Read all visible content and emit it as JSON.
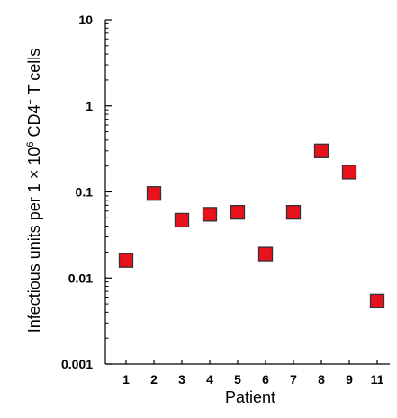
{
  "chart_data": {
    "type": "scatter",
    "title": "",
    "xlabel": "Patient",
    "ylabel": {
      "prefix": "Infectious units per 1 × 10",
      "exp": "6",
      "middle": " CD4",
      "sup": "+",
      "suffix": " T cells"
    },
    "y_scale": "log",
    "ylim": [
      0.001,
      10
    ],
    "y_ticks": [
      0.001,
      0.01,
      0.1,
      1,
      10
    ],
    "y_tick_labels": [
      "0.001",
      "0.01",
      "0.1",
      "1",
      "10"
    ],
    "categories": [
      "1",
      "2",
      "3",
      "4",
      "5",
      "6",
      "7",
      "8",
      "9",
      "11"
    ],
    "values": [
      0.016,
      0.096,
      0.047,
      0.055,
      0.058,
      0.019,
      0.058,
      0.3,
      0.17,
      0.0054
    ],
    "grid": false,
    "legend": "none",
    "marker": "square",
    "marker_color": "#e8121c",
    "marker_edge_color": "#333333"
  }
}
